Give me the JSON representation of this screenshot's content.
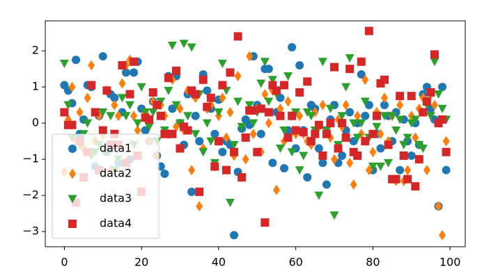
{
  "chart_data": {
    "type": "scatter",
    "x": [
      0,
      1,
      2,
      3,
      4,
      5,
      6,
      7,
      8,
      9,
      10,
      11,
      12,
      13,
      14,
      15,
      16,
      17,
      18,
      19,
      20,
      21,
      22,
      23,
      24,
      25,
      26,
      27,
      28,
      29,
      30,
      31,
      32,
      33,
      34,
      35,
      36,
      37,
      38,
      39,
      40,
      41,
      42,
      43,
      44,
      45,
      46,
      47,
      48,
      49,
      50,
      51,
      52,
      53,
      54,
      55,
      56,
      57,
      58,
      59,
      60,
      61,
      62,
      63,
      64,
      65,
      66,
      67,
      68,
      69,
      70,
      71,
      72,
      73,
      74,
      75,
      76,
      77,
      78,
      79,
      80,
      81,
      82,
      83,
      84,
      85,
      86,
      87,
      88,
      89,
      90,
      91,
      92,
      93,
      94,
      95,
      96,
      97,
      98,
      99
    ],
    "series": [
      {
        "name": "data1",
        "color": "#1f77b4",
        "marker": "o",
        "values": [
          1.05,
          0.9,
          0.55,
          1.75,
          -0.3,
          0.1,
          1.05,
          1.0,
          -1.2,
          0.2,
          1.85,
          -0.8,
          0.8,
          0.7,
          -1.1,
          0.3,
          1.4,
          -1.0,
          1.4,
          1.7,
          0.4,
          -0.2,
          -0.5,
          0.6,
          -0.9,
          -1.2,
          -1.4,
          1.3,
          0.4,
          1.3,
          0.0,
          -0.6,
          0.8,
          -1.9,
          0.2,
          -0.5,
          1.35,
          0.9,
          0.4,
          -0.3,
          0.65,
          -0.8,
          -0.5,
          -0.6,
          -3.1,
          -1.35,
          -0.15,
          0.1,
          -0.05,
          1.85,
          0.5,
          -0.3,
          1.5,
          1.5,
          -1.1,
          0.3,
          0.7,
          -1.25,
          -0.2,
          2.1,
          -0.7,
          1.6,
          -0.2,
          -1.5,
          0.5,
          0.4,
          -0.7,
          -1.1,
          -1.7,
          0.1,
          0.5,
          -1.1,
          -0.9,
          -0.2,
          0.3,
          -0.5,
          0.0,
          1.35,
          0.2,
          0.5,
          -1.3,
          -0.3,
          -0.7,
          0.5,
          0.2,
          -0.5,
          0.3,
          -1.3,
          0.1,
          -0.5,
          -0.9,
          0.0,
          -0.6,
          0.8,
          1.0,
          0.4,
          0.1,
          -2.3,
          1.0,
          -1.3
        ]
      },
      {
        "name": "data2",
        "color": "#ff7f0e",
        "marker": "d",
        "values": [
          -1.35,
          0.1,
          1.0,
          -0.5,
          0.3,
          -0.7,
          0.7,
          1.6,
          -0.5,
          0.2,
          -0.3,
          0.9,
          -1.3,
          0.5,
          0.2,
          1.1,
          1.6,
          1.75,
          0.2,
          -0.2,
          -1.9,
          0.3,
          -0.5,
          0.6,
          -0.9,
          0.5,
          0.2,
          -0.3,
          1.2,
          -0.1,
          0.4,
          -0.2,
          0.9,
          -1.3,
          0.7,
          -2.3,
          -0.7,
          0.4,
          0.5,
          -1.2,
          0.2,
          0.7,
          -0.4,
          0.3,
          -0.9,
          1.3,
          -1.5,
          -1.0,
          1.85,
          -0.3,
          0.4,
          -0.8,
          0.8,
          0.0,
          0.9,
          -1.85,
          0.4,
          -0.5,
          0.6,
          0.2,
          -0.3,
          0.2,
          -0.3,
          -0.5,
          -0.6,
          0.3,
          -0.1,
          0.5,
          -0.2,
          -0.4,
          -1.0,
          0.1,
          -0.1,
          0.5,
          -1.1,
          -1.7,
          0.2,
          -0.3,
          1.2,
          -1.3,
          -0.8,
          0.3,
          -0.3,
          0.7,
          -0.5,
          0.2,
          -1.6,
          0.5,
          -1.6,
          -1.3,
          0.2,
          -0.4,
          0.4,
          0.7,
          -1.3,
          0.8,
          0.5,
          -2.3,
          -3.1,
          -0.5
        ]
      },
      {
        "name": "data3",
        "color": "#2ca02c",
        "marker": "v",
        "values": [
          1.65,
          0.5,
          -0.4,
          -2.2,
          -0.6,
          -0.3,
          0.0,
          -0.9,
          -0.8,
          -0.6,
          0.3,
          -0.8,
          0.2,
          -1.3,
          -1.0,
          0.7,
          0.2,
          0.5,
          -0.6,
          0.0,
          1.0,
          0.3,
          -0.1,
          0.3,
          -0.5,
          0.6,
          -0.2,
          0.9,
          2.15,
          0.5,
          0.0,
          2.2,
          0.2,
          2.1,
          -0.3,
          0.8,
          -0.8,
          0.0,
          -0.5,
          -1.1,
          0.3,
          1.65,
          0.9,
          -2.2,
          -0.6,
          0.6,
          -0.1,
          -0.4,
          0.5,
          0.0,
          0.3,
          1.1,
          1.7,
          0.6,
          1.2,
          0.8,
          -0.7,
          -0.2,
          1.3,
          -0.8,
          0.3,
          -1.3,
          -0.9,
          0.3,
          0.2,
          -0.2,
          -2.0,
          1.7,
          -0.2,
          0.4,
          -2.55,
          -0.6,
          0.2,
          1.0,
          1.8,
          0.0,
          -0.4,
          0.0,
          0.6,
          -0.4,
          -1.2,
          -0.1,
          -1.2,
          0.2,
          -1.1,
          0.2,
          -0.2,
          0.1,
          -0.6,
          -0.4,
          0.0,
          0.1,
          -0.6,
          -0.7,
          0.5,
          0.2,
          1.7,
          0.8,
          0.4,
          0.1
        ]
      },
      {
        "name": "data4",
        "color": "#d62728",
        "marker": "s",
        "values": [
          0.3,
          -0.05,
          -0.05,
          -2.2,
          -0.5,
          -1.5,
          -0.8,
          1.05,
          0.3,
          -1.3,
          -0.2,
          0.9,
          -0.6,
          -0.3,
          -0.6,
          1.6,
          -1.1,
          0.8,
          1.7,
          -0.9,
          -1.9,
          0.15,
          0.1,
          0.85,
          0.5,
          0.2,
          -0.3,
          1.25,
          -0.3,
          1.45,
          -0.7,
          -0.1,
          -0.2,
          0.9,
          0.8,
          -1.9,
          1.2,
          0.45,
          0.7,
          -1.2,
          -0.5,
          1.05,
          -1.3,
          1.4,
          -0.8,
          2.4,
          -1.5,
          -0.4,
          0.35,
          0.35,
          -0.8,
          0.4,
          -2.75,
          0.3,
          1.05,
          0.9,
          0.2,
          1.05,
          -0.4,
          0.2,
          -0.2,
          0.85,
          -0.25,
          1.15,
          -0.5,
          -0.3,
          -0.05,
          -0.9,
          -0.3,
          0.0,
          1.55,
          -0.7,
          0.0,
          -0.4,
          1.5,
          -0.8,
          -0.9,
          1.7,
          -0.5,
          2.55,
          -0.3,
          0.2,
          1.1,
          1.2,
          -0.6,
          -1.55,
          -1.55,
          0.75,
          -0.9,
          -1.55,
          0.75,
          -1.75,
          -1.0,
          0.3,
          0.6,
          0.85,
          1.9,
          0.0,
          0.1,
          -0.8
        ]
      }
    ],
    "xlim": [
      -4.95,
      103.95
    ],
    "ylim": [
      -3.42,
      2.83
    ],
    "xticks": [
      0,
      20,
      40,
      60,
      80,
      100
    ],
    "yticks": [
      {
        "value": -3,
        "label": "−3"
      },
      {
        "value": -2,
        "label": "−2"
      },
      {
        "value": -1,
        "label": "−1"
      },
      0,
      1,
      2
    ],
    "grid": false,
    "legend": "lower left"
  }
}
